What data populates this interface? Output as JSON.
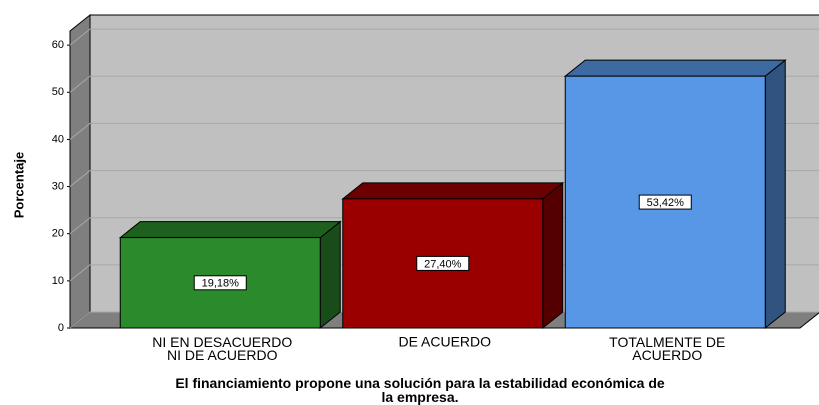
{
  "chart_data": {
    "type": "bar3d",
    "title": "El financiamiento propone una solución para la estabilidad económica de\nla empresa.",
    "y_label": "Porcentaje",
    "categories": [
      "NI EN DESACUERDO\nNI DE ACUERDO",
      "DE ACUERDO",
      "TOTALMENTE DE\nACUERDO"
    ],
    "values": [
      19.18,
      27.4,
      53.42
    ],
    "value_labels": [
      "19,18%",
      "27,40%",
      "53,42%"
    ],
    "colors": [
      "#2b8a2b",
      "#9a0000",
      "#5797e6"
    ],
    "ylim": [
      0,
      63
    ],
    "yticks": [
      0,
      10,
      20,
      30,
      40,
      50,
      60
    ],
    "grid": true
  }
}
